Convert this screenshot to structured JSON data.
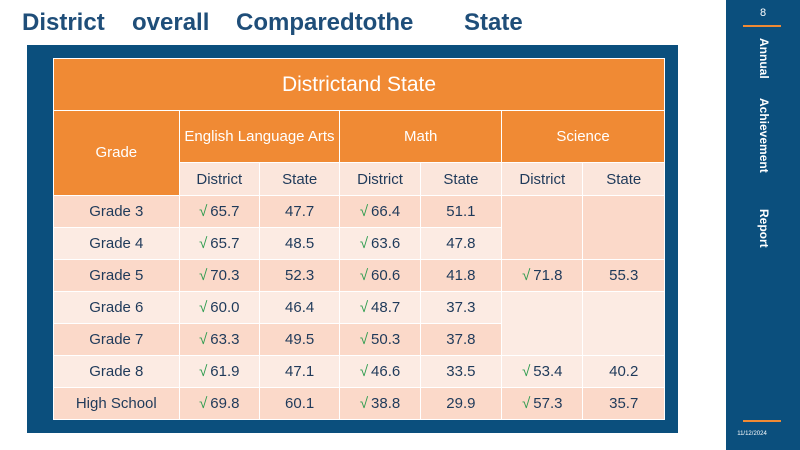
{
  "slide_title": [
    "District",
    "overall",
    "Comparedtothe",
    "State"
  ],
  "table": {
    "title": "Districtand State",
    "grade_header": "Grade",
    "subjects": [
      "English Language Arts",
      "Math",
      "Science"
    ],
    "sub_headers": [
      "District",
      "State",
      "District",
      "State",
      "District",
      "State"
    ],
    "check_mark": "√",
    "rows": [
      {
        "grade": "Grade 3",
        "ela_d": "65.7",
        "ela_s": "47.7",
        "math_d": "66.4",
        "math_s": "51.1",
        "sci_d": "",
        "sci_s": ""
      },
      {
        "grade": "Grade 4",
        "ela_d": "65.7",
        "ela_s": "48.5",
        "math_d": "63.6",
        "math_s": "47.8",
        "sci_d": "",
        "sci_s": ""
      },
      {
        "grade": "Grade 5",
        "ela_d": "70.3",
        "ela_s": "52.3",
        "math_d": "60.6",
        "math_s": "41.8",
        "sci_d": "71.8",
        "sci_s": "55.3"
      },
      {
        "grade": "Grade 6",
        "ela_d": "60.0",
        "ela_s": "46.4",
        "math_d": "48.7",
        "math_s": "37.3",
        "sci_d": "",
        "sci_s": ""
      },
      {
        "grade": "Grade 7",
        "ela_d": "63.3",
        "ela_s": "49.5",
        "math_d": "50.3",
        "math_s": "37.8",
        "sci_d": "",
        "sci_s": ""
      },
      {
        "grade": "Grade 8",
        "ela_d": "61.9",
        "ela_s": "47.1",
        "math_d": "46.6",
        "math_s": "33.5",
        "sci_d": "53.4",
        "sci_s": "40.2"
      },
      {
        "grade": "High School",
        "ela_d": "69.8",
        "ela_s": "60.1",
        "math_d": "38.8",
        "math_s": "29.9",
        "sci_d": "57.3",
        "sci_s": "35.7"
      }
    ]
  },
  "sidebar": {
    "page_number": "8",
    "words": [
      "Annual",
      "Achievement",
      "Report"
    ],
    "date": "11/12/2024"
  },
  "colors": {
    "navy": "#0b4f7d",
    "orange": "#f08a34",
    "check_green": "#2e9c4f"
  }
}
